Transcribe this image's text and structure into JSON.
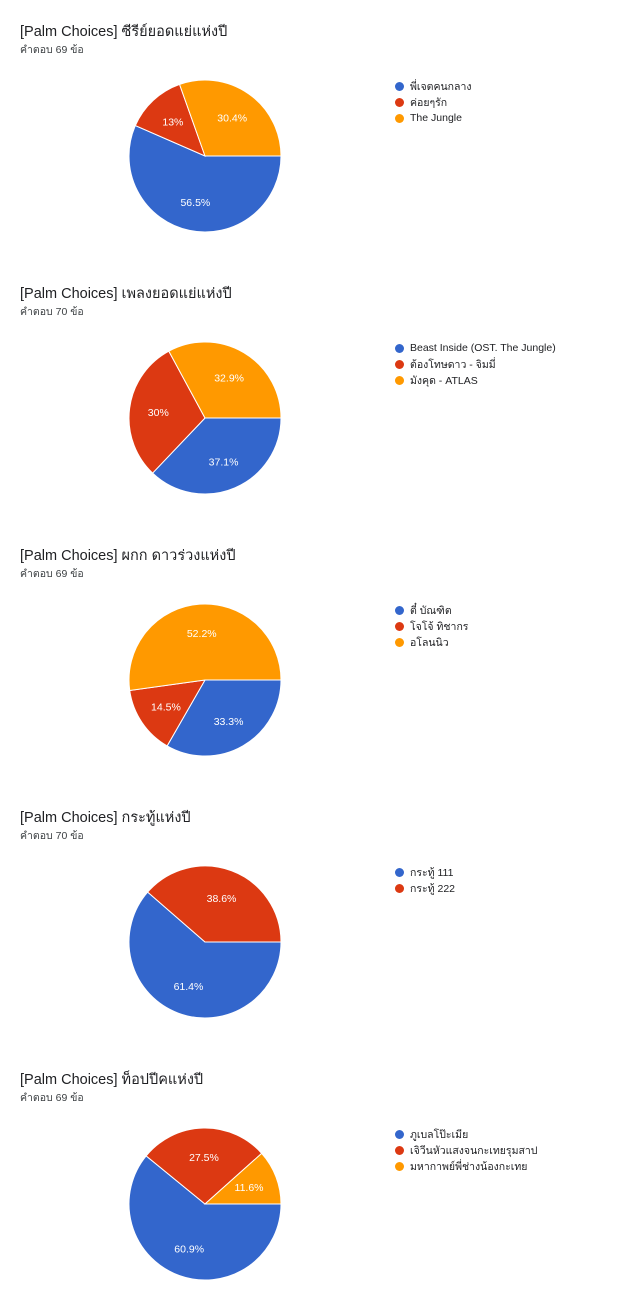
{
  "chart_data": [
    {
      "type": "pie",
      "title": "[Palm Choices] ซีรีย์ยอดแย่แห่งปี",
      "subtitle": "คำตอบ 69 ข้อ",
      "slices": [
        {
          "label": "พี่เจตคนกลาง",
          "value": 56.5,
          "display": "56.5%",
          "color": "#3366cc"
        },
        {
          "label": "ค่อยๆรัก",
          "value": 13,
          "display": "13%",
          "color": "#dc3912"
        },
        {
          "label": "The Jungle",
          "value": 30.4,
          "display": "30.4%",
          "color": "#ff9900"
        }
      ]
    },
    {
      "type": "pie",
      "title": "[Palm Choices] เพลงยอดแย่แห่งปี",
      "subtitle": "คำตอบ 70 ข้อ",
      "slices": [
        {
          "label": "Beast Inside (OST. The Jungle)",
          "value": 37.1,
          "display": "37.1%",
          "color": "#3366cc"
        },
        {
          "label": "ต้องโทษดาว - จิมมี่",
          "value": 30,
          "display": "30%",
          "color": "#dc3912"
        },
        {
          "label": "มังคุด - ATLAS",
          "value": 32.9,
          "display": "32.9%",
          "color": "#ff9900"
        }
      ]
    },
    {
      "type": "pie",
      "title": "[Palm Choices] ผกก ดาวร่วงแห่งปี",
      "subtitle": "คำตอบ 69 ข้อ",
      "slices": [
        {
          "label": "ตี๋ บัณฑิต",
          "value": 33.3,
          "display": "33.3%",
          "color": "#3366cc"
        },
        {
          "label": "โจโจ้ ทิชากร",
          "value": 14.5,
          "display": "14.5%",
          "color": "#dc3912"
        },
        {
          "label": "อโลนนิว",
          "value": 52.2,
          "display": "52.2%",
          "color": "#ff9900"
        }
      ]
    },
    {
      "type": "pie",
      "title": "[Palm Choices] กระทู้แห่งปี",
      "subtitle": "คำตอบ 70 ข้อ",
      "slices": [
        {
          "label": "กระทู้ 111",
          "value": 61.4,
          "display": "61.4%",
          "color": "#3366cc"
        },
        {
          "label": "กระทู้ 222",
          "value": 38.6,
          "display": "38.6%",
          "color": "#dc3912"
        }
      ]
    },
    {
      "type": "pie",
      "title": "[Palm Choices] ท็อปปีคแห่งปี",
      "subtitle": "คำตอบ 69 ข้อ",
      "slices": [
        {
          "label": "ภูเบลโป๊ะเมีย",
          "value": 60.9,
          "display": "60.9%",
          "color": "#3366cc"
        },
        {
          "label": "เจิวีนหัวแสงจนกะเทยรุมสาป",
          "value": 27.5,
          "display": "27.5%",
          "color": "#dc3912"
        },
        {
          "label": "มหากาพย์พี่ช่างน้องกะเทย",
          "value": 11.6,
          "display": "11.6%",
          "color": "#ff9900"
        }
      ]
    }
  ]
}
